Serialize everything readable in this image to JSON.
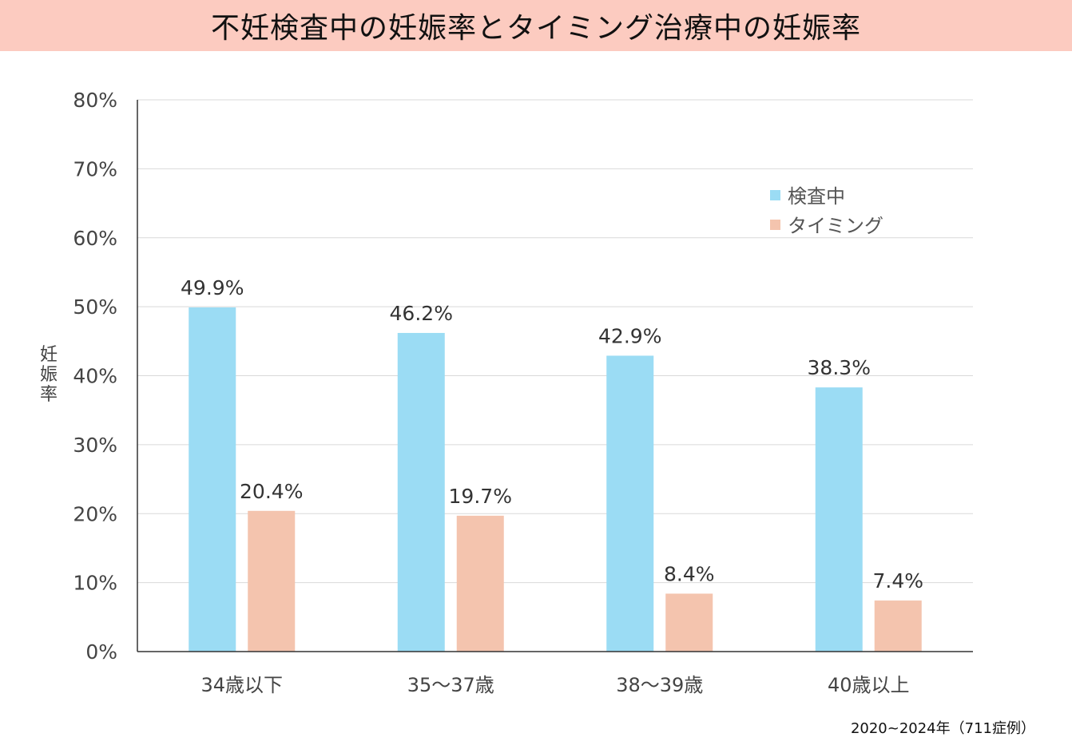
{
  "chart_data": {
    "type": "bar",
    "title": "不妊検査中の妊娠率とタイミング治療中の妊娠率",
    "ylabel": "妊娠率",
    "xlabel": "",
    "categories": [
      "34歳以下",
      "35〜37歳",
      "38〜39歳",
      "40歳以上"
    ],
    "series": [
      {
        "name": "検査中",
        "values": [
          49.9,
          46.2,
          42.9,
          38.3
        ],
        "color": "#9bdcf4"
      },
      {
        "name": "タイミング",
        "values": [
          20.4,
          19.7,
          8.4,
          7.4
        ],
        "color": "#f4c4ae"
      }
    ],
    "data_labels": [
      [
        "49.9%",
        "46.2%",
        "42.9%",
        "38.3%"
      ],
      [
        "20.4%",
        "19.7%",
        "8.4%",
        "7.4%"
      ]
    ],
    "ylim": [
      0,
      80
    ],
    "yticks": [
      "0%",
      "10%",
      "20%",
      "30%",
      "40%",
      "50%",
      "60%",
      "70%",
      "80%"
    ],
    "grid": true,
    "legend_placement": "top-right",
    "note": "2020~2024年（711症例）"
  }
}
